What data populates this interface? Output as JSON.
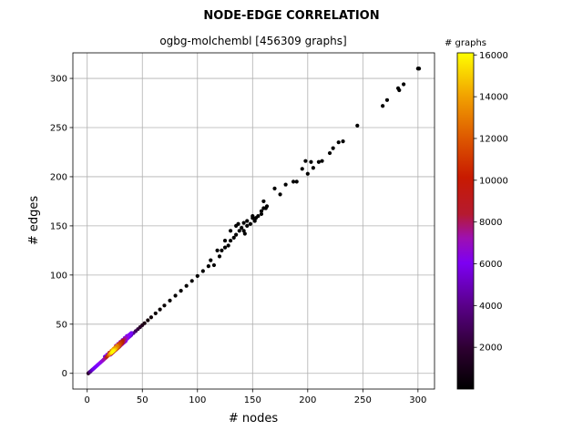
{
  "chart_data": {
    "type": "scatter",
    "title": "NODE-EDGE CORRELATION",
    "subtitle": "ogbg-molchembl [456309 graphs]",
    "xlabel": "# nodes",
    "ylabel": "# edges",
    "xlim": [
      -13,
      315
    ],
    "ylim": [
      -16,
      326
    ],
    "xticks": [
      0,
      50,
      100,
      150,
      200,
      250,
      300
    ],
    "yticks": [
      0,
      50,
      100,
      150,
      200,
      250,
      300
    ],
    "grid": true,
    "colorbar": {
      "label": "# graphs",
      "colormap": "gnuplot",
      "range": [
        1,
        16100
      ],
      "ticks": [
        2000,
        4000,
        6000,
        8000,
        10000,
        12000,
        14000,
        16000
      ],
      "tick_labels": [
        "2000",
        "4000",
        "6000",
        "8000",
        "10000",
        "12000",
        "14000",
        "16000"
      ]
    },
    "points": [
      [
        1,
        0,
        300
      ],
      [
        2,
        1,
        900
      ],
      [
        3,
        2,
        1500
      ],
      [
        4,
        3,
        2100
      ],
      [
        5,
        4,
        2600
      ],
      [
        6,
        5,
        3000
      ],
      [
        7,
        6,
        3300
      ],
      [
        8,
        7,
        3600
      ],
      [
        9,
        8,
        3800
      ],
      [
        10,
        9,
        4000
      ],
      [
        11,
        10,
        4400
      ],
      [
        12,
        11,
        4900
      ],
      [
        13,
        12,
        5200
      ],
      [
        14,
        13,
        5500
      ],
      [
        15,
        14,
        6000
      ],
      [
        16,
        15,
        6400
      ],
      [
        17,
        16,
        7200
      ],
      [
        18,
        17,
        8500
      ],
      [
        19,
        18,
        10500
      ],
      [
        20,
        19,
        12500
      ],
      [
        21,
        20,
        14000
      ],
      [
        22,
        21,
        15500
      ],
      [
        23,
        22,
        16000
      ],
      [
        24,
        23,
        15800
      ],
      [
        25,
        24,
        15000
      ],
      [
        26,
        25,
        14000
      ],
      [
        27,
        26,
        13000
      ],
      [
        28,
        27,
        12000
      ],
      [
        29,
        28,
        11000
      ],
      [
        30,
        29,
        9800
      ],
      [
        31,
        30,
        8800
      ],
      [
        32,
        31,
        7800
      ],
      [
        33,
        32,
        6800
      ],
      [
        34,
        33,
        6000
      ],
      [
        35,
        34,
        5200
      ],
      [
        36,
        35,
        4500
      ],
      [
        37,
        36,
        3800
      ],
      [
        38,
        37,
        3200
      ],
      [
        39,
        38,
        2600
      ],
      [
        40,
        39,
        2100
      ],
      [
        42,
        41,
        1400
      ],
      [
        44,
        43,
        900
      ],
      [
        46,
        45,
        600
      ],
      [
        48,
        47,
        400
      ],
      [
        50,
        49,
        250
      ],
      [
        52,
        51,
        150
      ],
      [
        55,
        54,
        90
      ],
      [
        58,
        57,
        60
      ],
      [
        62,
        61,
        40
      ],
      [
        66,
        65,
        25
      ],
      [
        70,
        69,
        15
      ],
      [
        75,
        74,
        10
      ],
      [
        80,
        79,
        6
      ],
      [
        85,
        84,
        4
      ],
      [
        90,
        89,
        3
      ],
      [
        95,
        94,
        2
      ],
      [
        20,
        21,
        9000
      ],
      [
        22,
        23,
        12000
      ],
      [
        24,
        25,
        13000
      ],
      [
        26,
        27,
        12500
      ],
      [
        28,
        29,
        11000
      ],
      [
        30,
        31,
        9500
      ],
      [
        32,
        33,
        8000
      ],
      [
        34,
        35,
        6500
      ],
      [
        36,
        37,
        5200
      ],
      [
        38,
        39,
        4200
      ],
      [
        40,
        41,
        3300
      ],
      [
        23,
        24,
        14500
      ],
      [
        25,
        26,
        13500
      ],
      [
        27,
        28,
        12800
      ],
      [
        29,
        30,
        10500
      ],
      [
        31,
        32,
        8700
      ],
      [
        33,
        34,
        7200
      ],
      [
        35,
        36,
        5800
      ],
      [
        37,
        38,
        4700
      ],
      [
        39,
        40,
        3700
      ],
      [
        22,
        20,
        8000
      ],
      [
        24,
        22,
        9500
      ],
      [
        26,
        24,
        9000
      ],
      [
        28,
        26,
        8000
      ],
      [
        30,
        28,
        6800
      ],
      [
        32,
        30,
        5500
      ],
      [
        34,
        32,
        4500
      ],
      [
        27,
        25,
        8500
      ],
      [
        29,
        27,
        7500
      ],
      [
        31,
        29,
        6200
      ],
      [
        33,
        31,
        5000
      ],
      [
        35,
        33,
        4000
      ],
      [
        18,
        19,
        5500
      ],
      [
        16,
        17,
        3000
      ],
      [
        26,
        28,
        6000
      ],
      [
        28,
        30,
        5500
      ],
      [
        30,
        32,
        4800
      ],
      [
        32,
        34,
        4000
      ],
      [
        34,
        36,
        3400
      ],
      [
        36,
        38,
        2800
      ],
      [
        25,
        23,
        6000
      ],
      [
        23,
        21,
        5500
      ],
      [
        21,
        19,
        4500
      ],
      [
        100,
        99,
        1
      ],
      [
        105,
        104,
        1
      ],
      [
        110,
        109,
        1
      ],
      [
        120,
        119,
        1
      ],
      [
        122,
        125,
        1
      ],
      [
        125,
        128,
        1
      ],
      [
        130,
        135,
        1
      ],
      [
        133,
        138,
        1
      ],
      [
        135,
        141,
        1
      ],
      [
        138,
        145,
        1
      ],
      [
        140,
        148,
        1
      ],
      [
        142,
        145,
        1
      ],
      [
        145,
        155,
        1
      ],
      [
        148,
        152,
        1
      ],
      [
        150,
        158,
        1
      ],
      [
        152,
        155,
        1
      ],
      [
        155,
        160,
        1
      ],
      [
        158,
        165,
        1
      ],
      [
        160,
        168,
        1
      ],
      [
        163,
        170,
        1
      ],
      [
        170,
        188,
        1
      ],
      [
        175,
        182,
        1
      ],
      [
        180,
        192,
        1
      ],
      [
        187,
        195,
        1
      ],
      [
        190,
        195,
        1
      ],
      [
        195,
        208,
        1
      ],
      [
        198,
        216,
        1
      ],
      [
        200,
        203,
        1
      ],
      [
        203,
        215,
        1
      ],
      [
        205,
        209,
        1
      ],
      [
        210,
        215,
        1
      ],
      [
        213,
        216,
        1
      ],
      [
        220,
        224,
        1
      ],
      [
        223,
        229,
        1
      ],
      [
        228,
        235,
        1
      ],
      [
        232,
        236,
        1
      ],
      [
        245,
        252,
        1
      ],
      [
        268,
        272,
        1
      ],
      [
        272,
        278,
        1
      ],
      [
        282,
        290,
        1
      ],
      [
        283,
        288,
        1
      ],
      [
        287,
        294,
        1
      ],
      [
        300,
        310,
        1
      ],
      [
        301,
        310,
        1
      ],
      [
        115,
        110,
        1
      ],
      [
        118,
        125,
        1
      ],
      [
        112,
        115,
        1
      ],
      [
        128,
        130,
        1
      ],
      [
        137,
        152,
        1
      ],
      [
        143,
        142,
        1
      ],
      [
        158,
        162,
        1
      ],
      [
        160,
        175,
        1
      ],
      [
        135,
        150,
        1
      ],
      [
        125,
        135,
        1
      ],
      [
        130,
        145,
        1
      ],
      [
        142,
        153,
        1
      ],
      [
        145,
        150,
        1
      ],
      [
        150,
        160,
        1
      ],
      [
        153,
        158,
        1
      ],
      [
        162,
        168,
        1
      ]
    ]
  }
}
